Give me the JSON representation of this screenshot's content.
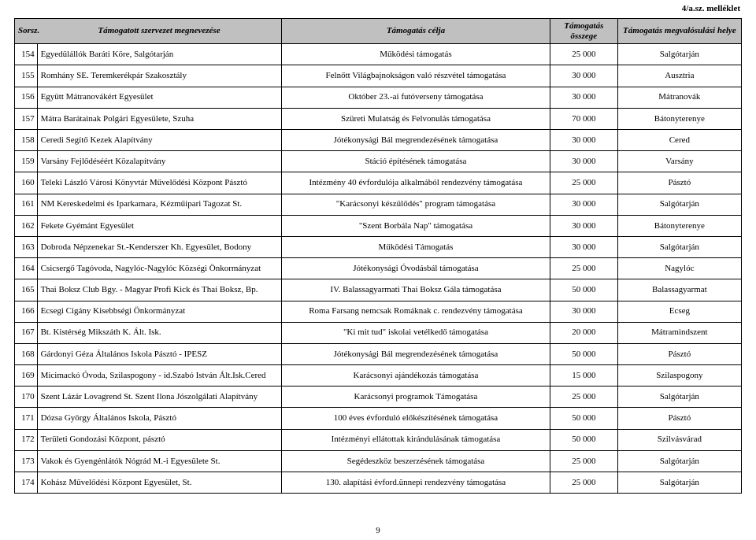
{
  "attachment_label": "4/a.sz. melléklet",
  "page_number": "9",
  "headers": {
    "num": "Sorsz.",
    "org": "Támogatott szervezet megnevezése",
    "purpose": "Támogatás célja",
    "amount": "Támogatás összege",
    "location": "Támogatás megvalósulási helye"
  },
  "rows": [
    {
      "n": "154",
      "org": "Egyedülállók Baráti Köre, Salgótarján",
      "purp": "Működési támogatás",
      "amt": "25 000",
      "loc": "Salgótarján"
    },
    {
      "n": "155",
      "org": "Romhány SE. Teremkerékpár Szakosztály",
      "purp": "Felnőtt Világbajnokságon való részvétel támogatása",
      "amt": "30 000",
      "loc": "Ausztria"
    },
    {
      "n": "156",
      "org": "Együtt Mátranovákért Egyesület",
      "purp": "Október 23.-ai futóverseny támogatása",
      "amt": "30 000",
      "loc": "Mátranovák"
    },
    {
      "n": "157",
      "org": "Mátra Barátainak Polgári Egyesülete, Szuha",
      "purp": "Szüreti Mulatság és Felvonulás támogatása",
      "amt": "70 000",
      "loc": "Bátonyterenye"
    },
    {
      "n": "158",
      "org": "Ceredi Segítő Kezek Alapítvány",
      "purp": "Jótékonysági Bál megrendezésének támogatása",
      "amt": "30 000",
      "loc": "Cered"
    },
    {
      "n": "159",
      "org": "Varsány Fejlődéséért Közalapítvány",
      "purp": "Stáció építésének támogatása",
      "amt": "30 000",
      "loc": "Varsány"
    },
    {
      "n": "160",
      "org": "Teleki László Városi Könyvtár Művelődési Központ Pásztó",
      "purp": "Intézmény 40 évfordulója alkalmából rendezvény támogatása",
      "amt": "25 000",
      "loc": "Pásztó"
    },
    {
      "n": "161",
      "org": "NM Kereskedelmi és Iparkamara, Kézműipari Tagozat St.",
      "purp": "\"Karácsonyi készülődés\" program támogatása",
      "amt": "30 000",
      "loc": "Salgótarján"
    },
    {
      "n": "162",
      "org": "Fekete Gyémánt Egyesület",
      "purp": "\"Szent Borbála Nap\" támogatása",
      "amt": "30 000",
      "loc": "Bátonyterenye"
    },
    {
      "n": "163",
      "org": "Dobroda Népzenekar St.-Kenderszer Kh. Egyesület, Bodony",
      "purp": "Működési Támogatás",
      "amt": "30 000",
      "loc": "Salgótarján"
    },
    {
      "n": "164",
      "org": "Csicsergő Tagóvoda, Nagylóc-Nagylóc Községi Önkormányzat",
      "purp": "Jótékonysági Óvodásbál támogatása",
      "amt": "25 000",
      "loc": "Nagylóc"
    },
    {
      "n": "165",
      "org": "Thai Boksz Club Bgy. - Magyar Profi Kick és Thai Boksz, Bp.",
      "purp": "IV. Balassagyarmati Thai Boksz Gála támogatása",
      "amt": "50 000",
      "loc": "Balassagyarmat"
    },
    {
      "n": "166",
      "org": "Ecsegi Cigány Kisebbségi Önkormányzat",
      "purp": "Roma Farsang nemcsak Romáknak c. rendezvény támogatása",
      "amt": "30 000",
      "loc": "Ecseg"
    },
    {
      "n": "167",
      "org": "Bt. Kistérség Mikszáth K. Ált. Isk.",
      "purp": "\"Ki mit tud\" iskolai vetélkedő támogatása",
      "amt": "20 000",
      "loc": "Mátramindszent"
    },
    {
      "n": "168",
      "org": "Gárdonyi Géza Általános Iskola Pásztó - IPESZ",
      "purp": "Jótékonysági Bál megrendezésének támogatása",
      "amt": "50 000",
      "loc": "Pásztó"
    },
    {
      "n": "169",
      "org": "Micimackó Óvoda, Szilaspogony - id.Szabó István Ált.Isk.Cered",
      "purp": "Karácsonyi ajándékozás támogatása",
      "amt": "15 000",
      "loc": "Szilaspogony"
    },
    {
      "n": "170",
      "org": "Szent Lázár Lovagrend St. Szent Ilona Jószolgálati Alapítvány",
      "purp": "Karácsonyi programok Támogatása",
      "amt": "25 000",
      "loc": "Salgótarján"
    },
    {
      "n": "171",
      "org": "Dózsa György Általános Iskola, Pásztó",
      "purp": "100 éves évforduló előkészítésének támogatása",
      "amt": "50 000",
      "loc": "Pásztó"
    },
    {
      "n": "172",
      "org": "Területi Gondozási Központ, pásztó",
      "purp": "Intézményi ellátottak kirándulásának támogatása",
      "amt": "50 000",
      "loc": "Szilvásvárad"
    },
    {
      "n": "173",
      "org": "Vakok és Gyengénlátók Nógrád M.-i Egyesülete St.",
      "purp": "Segédeszköz beszerzésének támogatása",
      "amt": "25 000",
      "loc": "Salgótarján"
    },
    {
      "n": "174",
      "org": "Kohász Művelődési Központ Egyesület, St.",
      "purp": "130. alapítási évford.ünnepi rendezvény támogatása",
      "amt": "25 000",
      "loc": "Salgótarján"
    }
  ]
}
